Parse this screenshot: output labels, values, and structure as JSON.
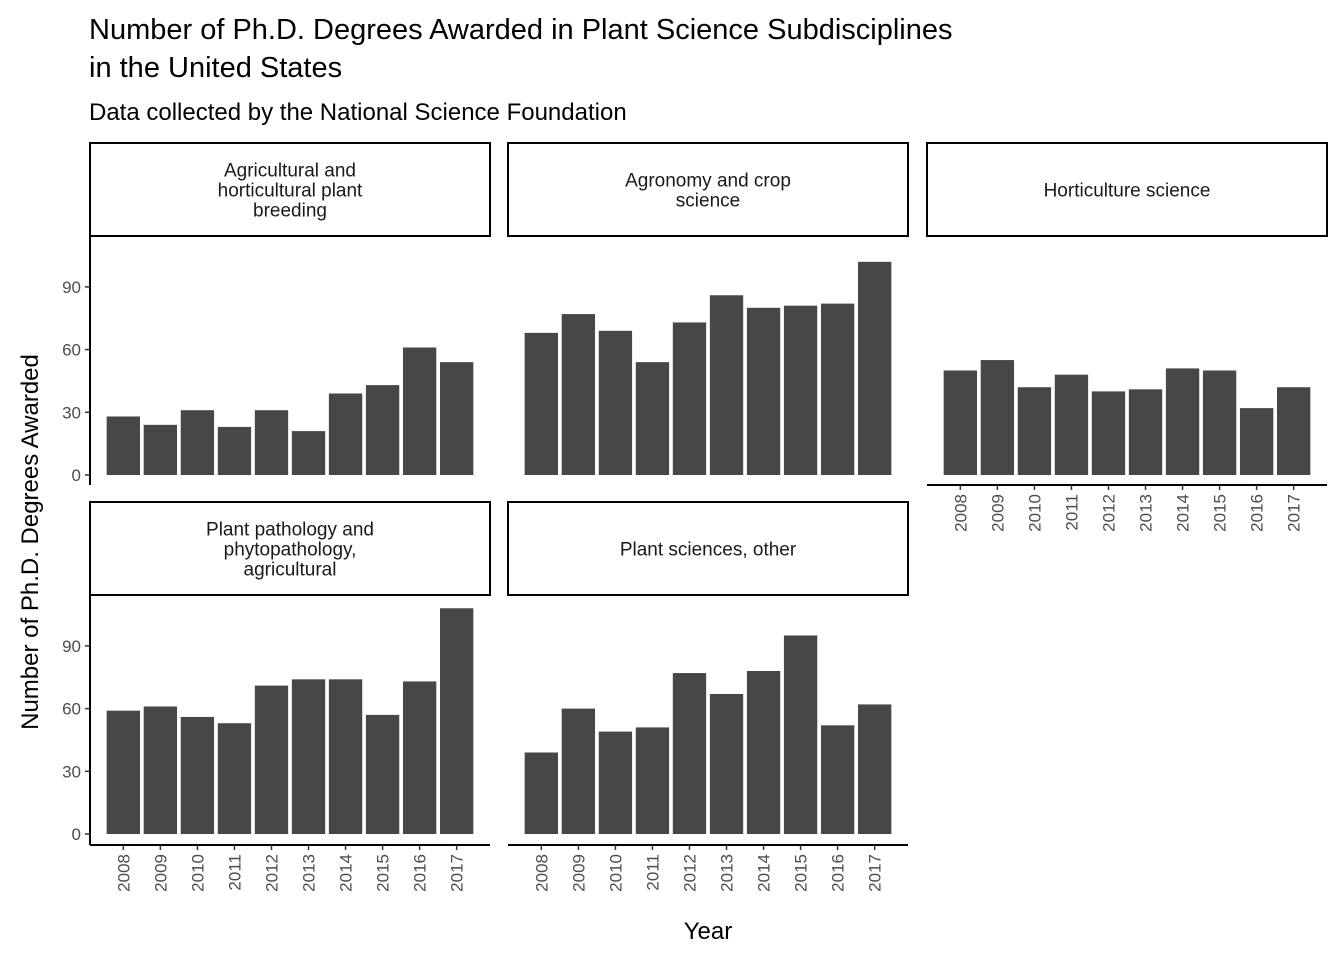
{
  "chart_data": {
    "type": "bar",
    "title": "Number of Ph.D. Degrees Awarded in Plant Science Subdisciplines in the United States",
    "title_lines": [
      "Number of Ph.D. Degrees Awarded in Plant Science Subdisciplines",
      "in the United States"
    ],
    "subtitle": "Data collected by the National Science Foundation",
    "xlabel": "Year",
    "ylabel": "Number of Ph.D. Degrees Awarded",
    "ylim": [
      0,
      114
    ],
    "yticks": [
      0,
      30,
      60,
      90
    ],
    "categories": [
      "2008",
      "2009",
      "2010",
      "2011",
      "2012",
      "2013",
      "2014",
      "2015",
      "2016",
      "2017"
    ],
    "bar_color": "#474747",
    "facets": [
      {
        "name": "Agricultural and horticultural plant breeding",
        "strip_lines": [
          "Agricultural and",
          "horticultural plant",
          "breeding"
        ],
        "values": [
          28,
          24,
          31,
          23,
          31,
          21,
          39,
          43,
          61,
          54
        ]
      },
      {
        "name": "Agronomy and crop science",
        "strip_lines": [
          "Agronomy and crop",
          "science"
        ],
        "values": [
          68,
          77,
          69,
          54,
          73,
          86,
          80,
          81,
          82,
          102
        ]
      },
      {
        "name": "Horticulture science",
        "strip_lines": [
          "Horticulture science"
        ],
        "values": [
          50,
          55,
          42,
          48,
          40,
          41,
          51,
          50,
          32,
          42
        ]
      },
      {
        "name": "Plant pathology and phytopathology, agricultural",
        "strip_lines": [
          "Plant pathology and",
          "phytopathology,",
          "agricultural"
        ],
        "values": [
          59,
          61,
          56,
          53,
          71,
          74,
          74,
          57,
          73,
          108
        ]
      },
      {
        "name": "Plant sciences, other",
        "strip_lines": [
          "Plant sciences, other"
        ],
        "values": [
          39,
          60,
          49,
          51,
          77,
          67,
          78,
          95,
          52,
          62
        ]
      }
    ]
  }
}
